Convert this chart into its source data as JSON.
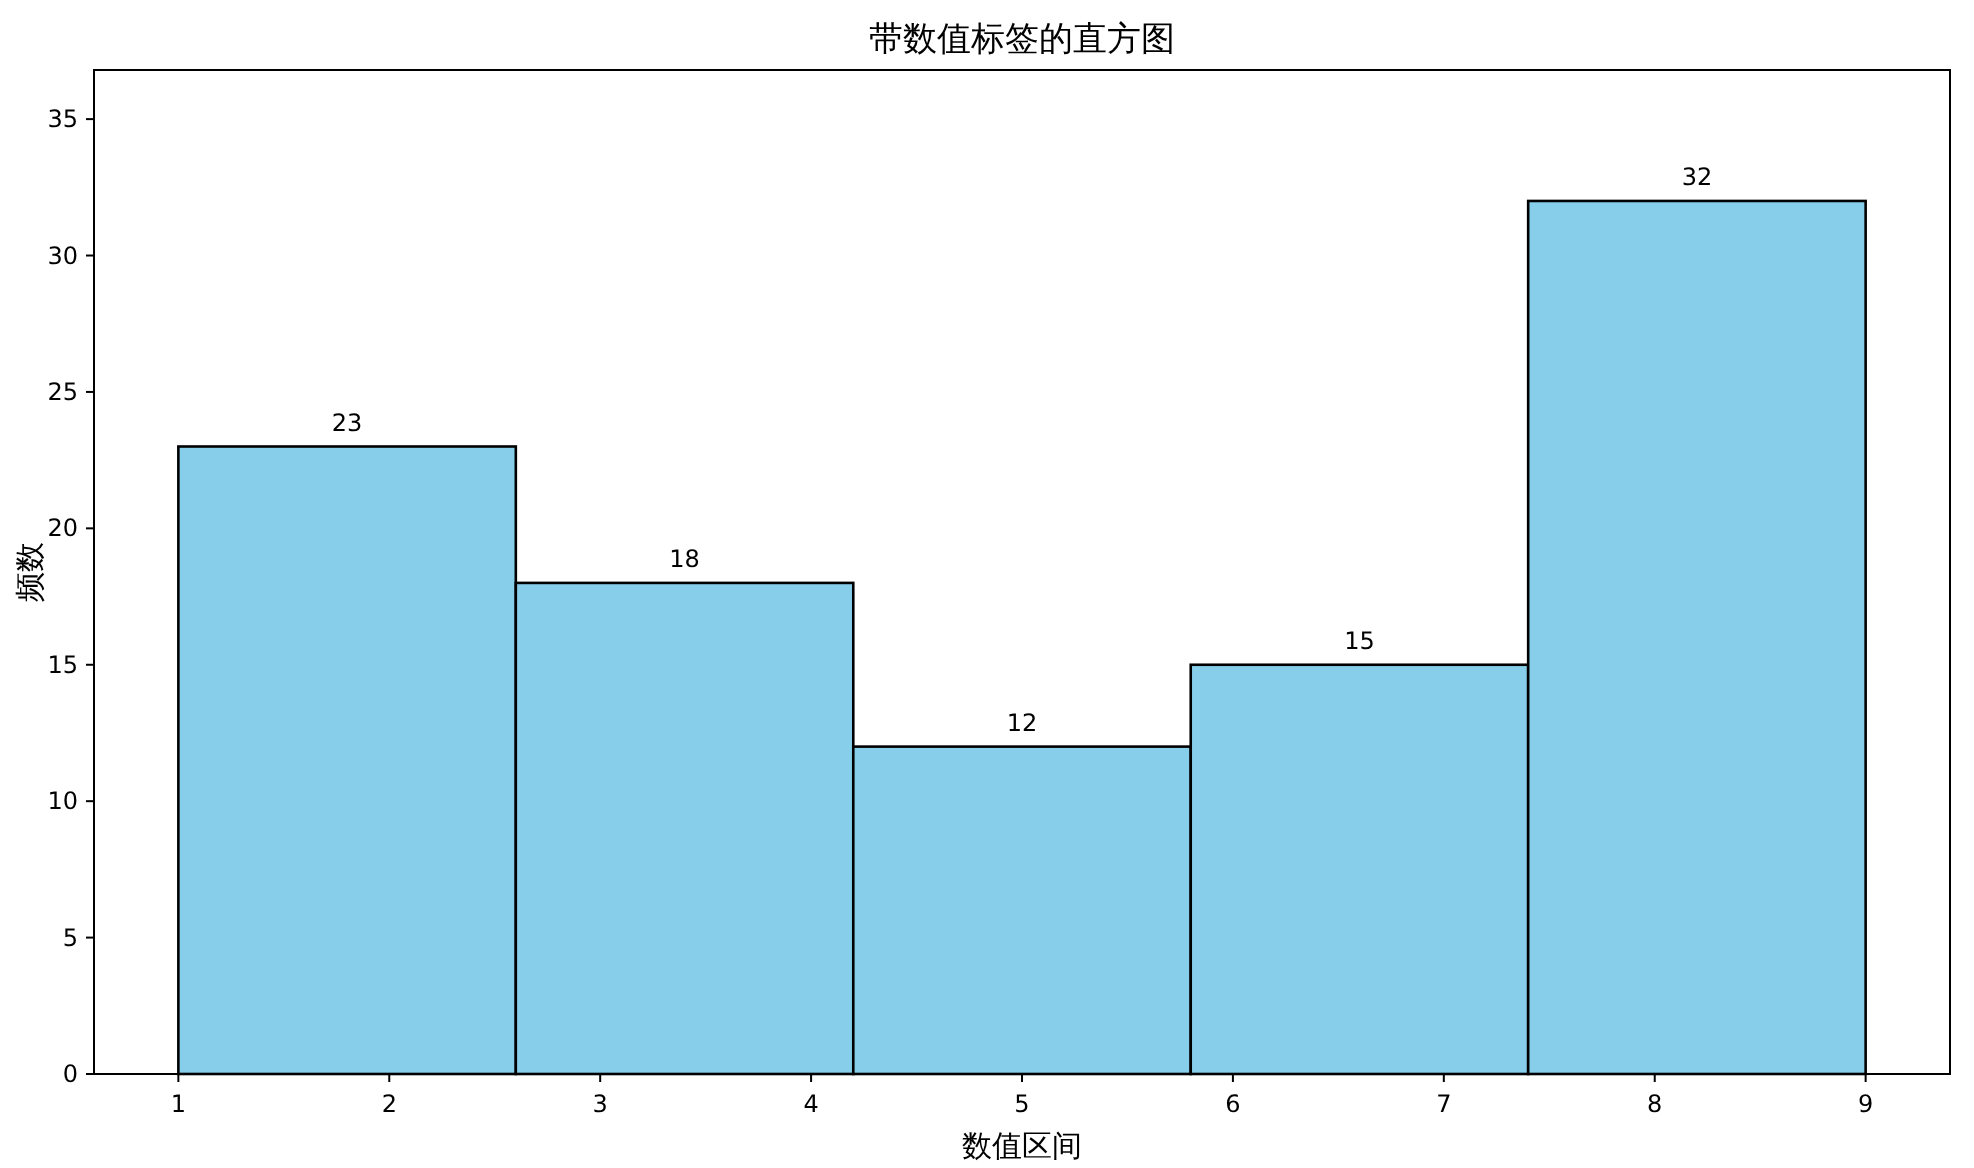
{
  "chart_data": {
    "type": "histogram",
    "title": "带数值标签的直方图",
    "xlabel": "数值区间",
    "ylabel": "频数",
    "bins": [
      1,
      2.6,
      4.2,
      5.8,
      7.4,
      9
    ],
    "values": [
      23,
      18,
      12,
      15,
      32
    ],
    "color": "#87ceeb",
    "xlim": [
      0.6,
      9.4
    ],
    "ylim": [
      0,
      36.8
    ],
    "xticks": [
      1,
      2,
      3,
      4,
      5,
      6,
      7,
      8,
      9
    ],
    "yticks": [
      0,
      5,
      10,
      15,
      20,
      25,
      30,
      35
    ],
    "data_labels": true
  }
}
